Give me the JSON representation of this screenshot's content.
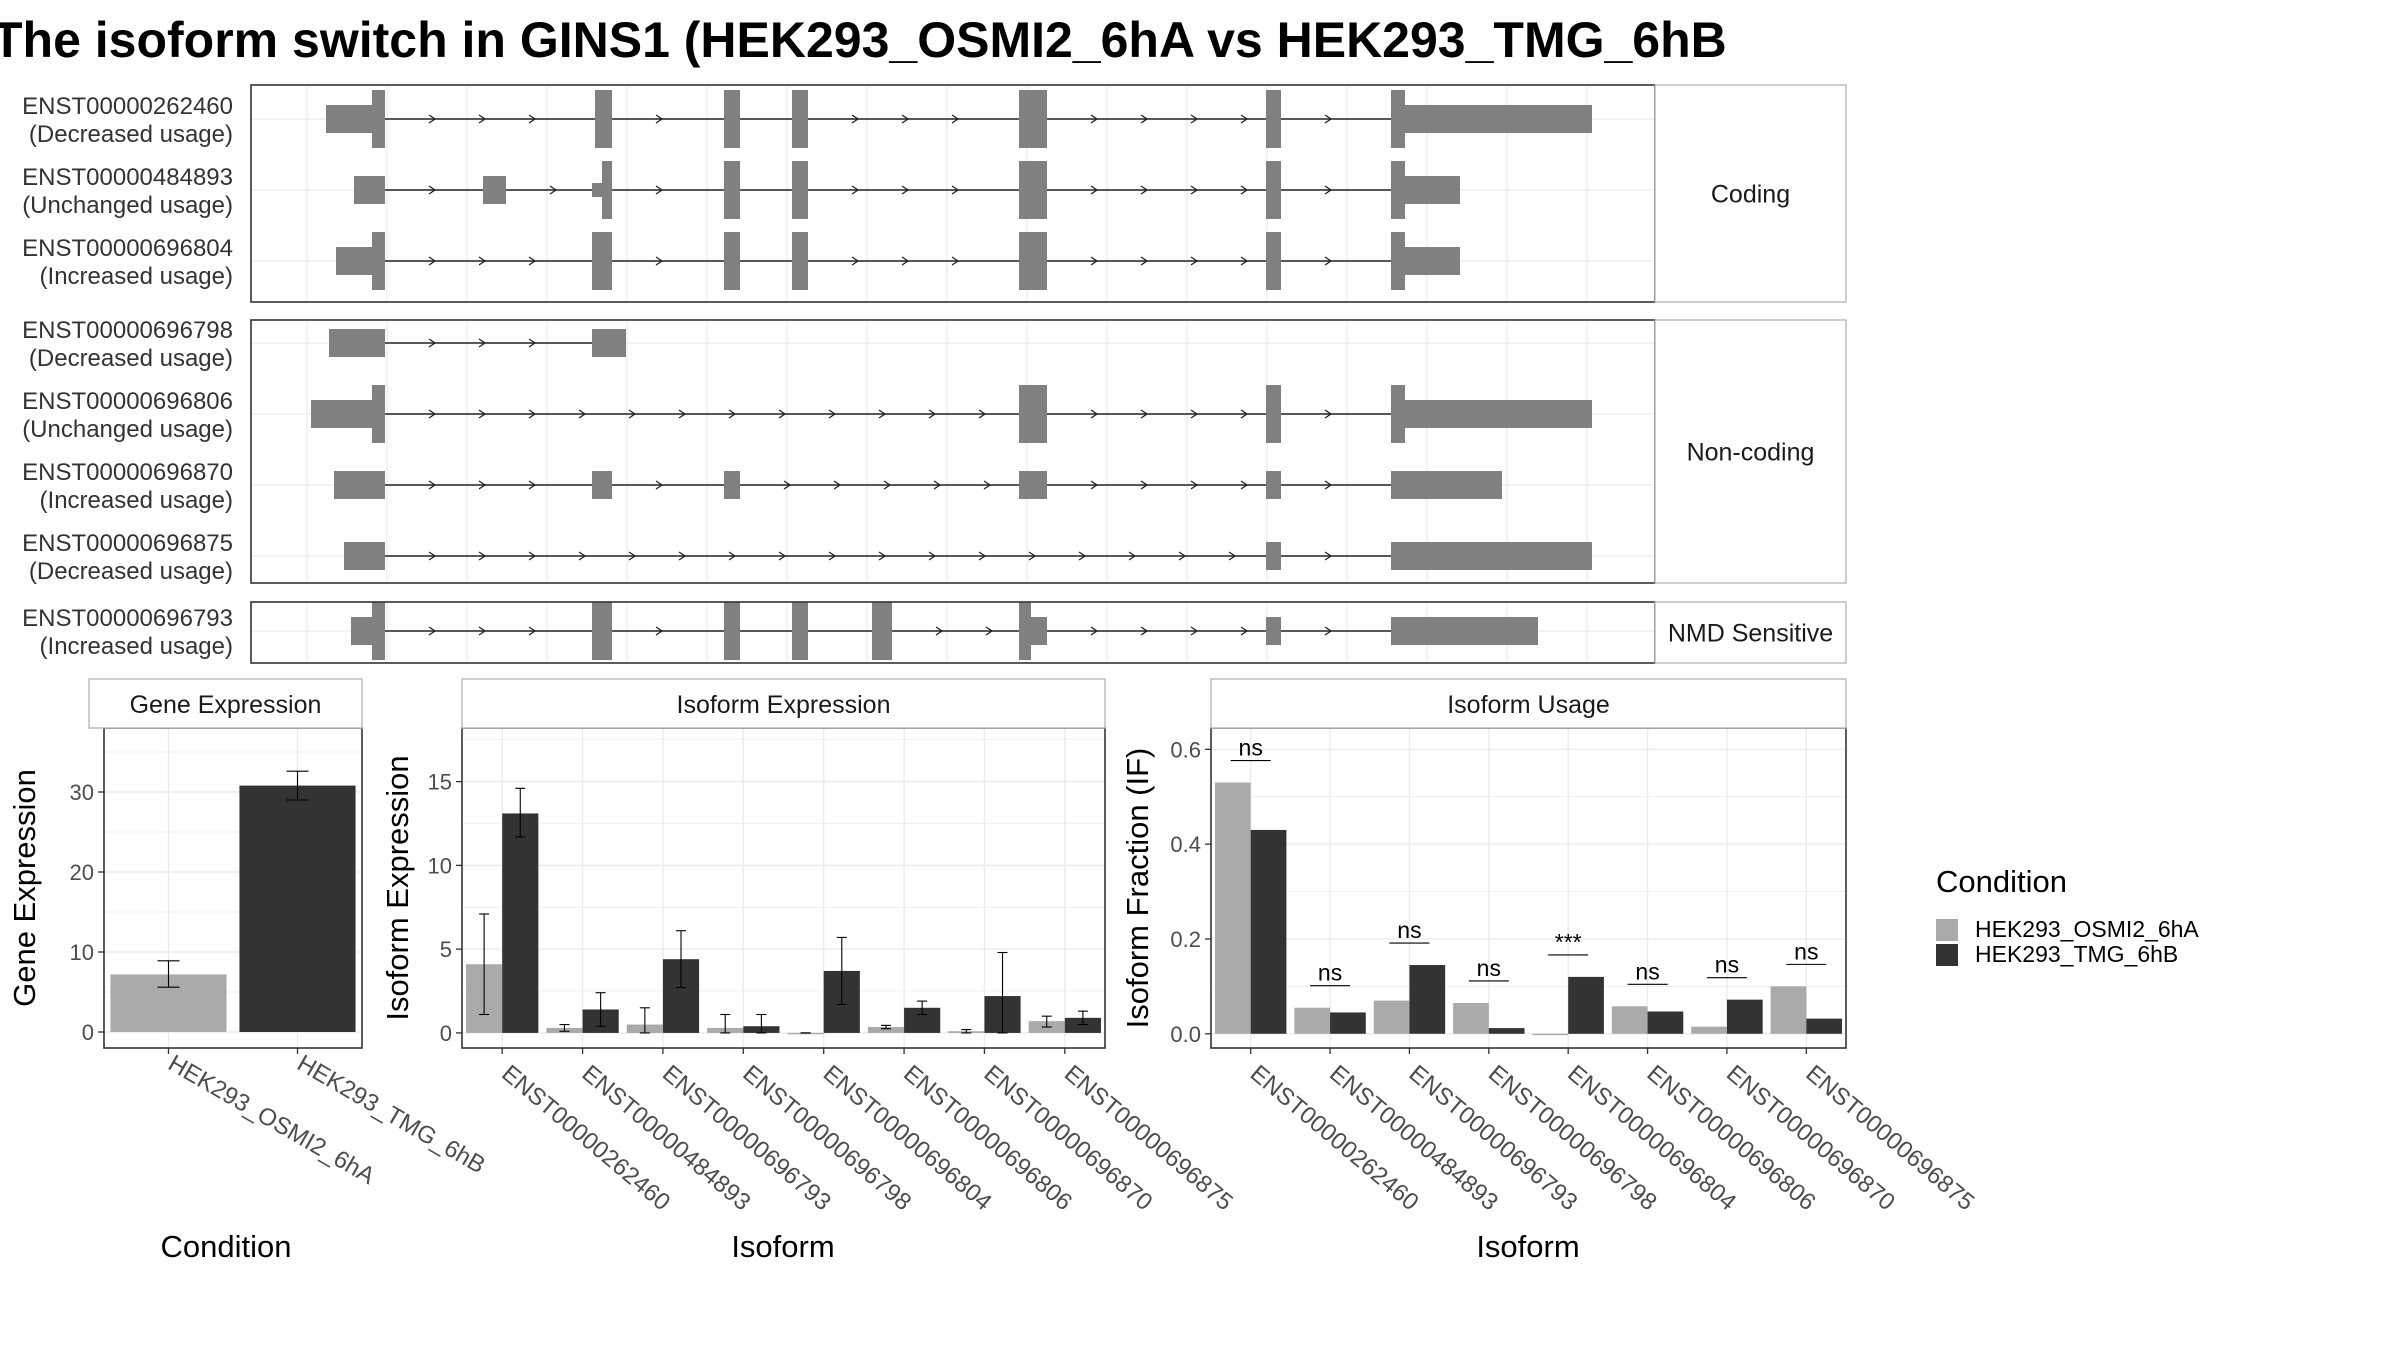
{
  "title": "The isoform switch in GINS1 (HEK293_OSMI2_6hA vs HEK293_TMG_6hB",
  "colors": {
    "cond1": "#aaaaaa",
    "cond2": "#333333",
    "exon": "#808080",
    "grid": "#ebebeb",
    "frame": "#333333"
  },
  "chart_data": [
    {
      "type": "gene-structure",
      "groups": [
        {
          "name": "Coding",
          "isoforms": [
            {
              "id": "ENST00000262460",
              "note": "(Decreased usage)"
            },
            {
              "id": "ENST00000484893",
              "note": "(Unchanged usage)"
            },
            {
              "id": "ENST00000696804",
              "note": "(Increased usage)"
            }
          ]
        },
        {
          "name": "Non-coding",
          "isoforms": [
            {
              "id": "ENST00000696798",
              "note": "(Decreased usage)"
            },
            {
              "id": "ENST00000696806",
              "note": "(Unchanged usage)"
            },
            {
              "id": "ENST00000696870",
              "note": "(Increased usage)"
            },
            {
              "id": "ENST00000696875",
              "note": "(Decreased usage)"
            }
          ]
        },
        {
          "name": "NMD Sensitive",
          "isoforms": [
            {
              "id": "ENST00000696793",
              "note": "(Increased usage)"
            }
          ]
        }
      ]
    },
    {
      "type": "bar",
      "strip": "Gene Expression",
      "xlabel": "Condition",
      "ylabel": "Gene Expression",
      "ylim": [
        -2,
        38
      ],
      "yticks": [
        0,
        10,
        20,
        30
      ],
      "categories": [
        "HEK293_OSMI2_6hA",
        "HEK293_TMG_6hB"
      ],
      "values": [
        7.2,
        30.8
      ],
      "errors": [
        [
          5.6,
          8.9
        ],
        [
          29.0,
          32.6
        ]
      ]
    },
    {
      "type": "bar",
      "strip": "Isoform Expression",
      "xlabel": "Isoform",
      "ylabel": "Isoform Expression",
      "ylim": [
        -0.9,
        18.2
      ],
      "yticks": [
        0,
        5,
        10,
        15
      ],
      "categories": [
        "ENST00000262460",
        "ENST00000484893",
        "ENST00000696793",
        "ENST00000696798",
        "ENST00000696804",
        "ENST00000696806",
        "ENST00000696870",
        "ENST00000696875"
      ],
      "series": [
        {
          "name": "HEK293_OSMI2_6hA",
          "values": [
            4.1,
            0.3,
            0.5,
            0.3,
            0.0,
            0.35,
            0.1,
            0.7
          ],
          "errors": [
            [
              1.1,
              7.1
            ],
            [
              0.1,
              0.5
            ],
            [
              0.0,
              1.5
            ],
            [
              0.0,
              1.1
            ],
            [
              0.0,
              0.0
            ],
            [
              0.25,
              0.45
            ],
            [
              0.0,
              0.2
            ],
            [
              0.35,
              1.0
            ]
          ]
        },
        {
          "name": "HEK293_TMG_6hB",
          "values": [
            13.1,
            1.4,
            4.4,
            0.4,
            3.7,
            1.5,
            2.2,
            0.9
          ],
          "errors": [
            [
              11.7,
              14.6
            ],
            [
              0.4,
              2.4
            ],
            [
              2.7,
              6.1
            ],
            [
              0.0,
              1.1
            ],
            [
              1.7,
              5.7
            ],
            [
              1.1,
              1.9
            ],
            [
              0.0,
              4.8
            ],
            [
              0.5,
              1.3
            ]
          ]
        }
      ]
    },
    {
      "type": "bar",
      "strip": "Isoform Usage",
      "xlabel": "Isoform",
      "ylabel": "Isoform Fraction (IF)",
      "ylim": [
        -0.03,
        0.645
      ],
      "yticks": [
        0.0,
        0.2,
        0.4,
        0.6
      ],
      "ytick_labels": [
        "0.0",
        "0.2",
        "0.4",
        "0.6"
      ],
      "categories": [
        "ENST00000262460",
        "ENST00000484893",
        "ENST00000696793",
        "ENST00000696798",
        "ENST00000696804",
        "ENST00000696806",
        "ENST00000696870",
        "ENST00000696875"
      ],
      "series": [
        {
          "name": "HEK293_OSMI2_6hA",
          "values": [
            0.53,
            0.055,
            0.07,
            0.065,
            0.0,
            0.058,
            0.015,
            0.1
          ]
        },
        {
          "name": "HEK293_TMG_6hB",
          "values": [
            0.43,
            0.045,
            0.145,
            0.012,
            0.12,
            0.047,
            0.072,
            0.032
          ]
        }
      ],
      "significance": [
        "ns",
        "ns",
        "ns",
        "ns",
        "***",
        "ns",
        "ns",
        "ns"
      ]
    }
  ],
  "legend": {
    "title": "Condition",
    "items": [
      "HEK293_OSMI2_6hA",
      "HEK293_TMG_6hB"
    ]
  }
}
